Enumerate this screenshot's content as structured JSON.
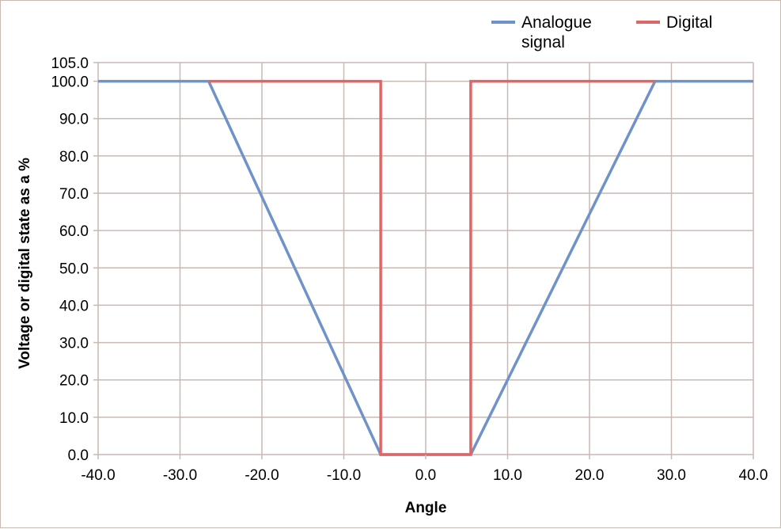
{
  "chart_data": {
    "type": "line",
    "xlabel": "Angle",
    "ylabel": "Voltage or digital state as a %",
    "xlim": [
      -40,
      40
    ],
    "ylim": [
      0,
      105
    ],
    "x_ticks": [
      -40,
      -30,
      -20,
      -10,
      0,
      10,
      20,
      30,
      40
    ],
    "x_tick_labels": [
      "-40.0",
      "-30.0",
      "-20.0",
      "-10.0",
      "0.0",
      "10.0",
      "20.0",
      "30.0",
      "40.0"
    ],
    "y_ticks": [
      0,
      10,
      20,
      30,
      40,
      50,
      60,
      70,
      80,
      90,
      100,
      105
    ],
    "y_tick_labels": [
      "0.0",
      "10.0",
      "20.0",
      "30.0",
      "40.0",
      "50.0",
      "60.0",
      "70.0",
      "80.0",
      "90.0",
      "100.0",
      "105.0"
    ],
    "grid": true,
    "legend_position": "top-right",
    "series": [
      {
        "name": "Analogue signal",
        "name_lines": [
          "Analogue",
          "signal"
        ],
        "color": "#6f93c9",
        "x": [
          -40,
          -26.5,
          -5.5,
          5.5,
          28,
          40
        ],
        "y": [
          100,
          100,
          0,
          0,
          100,
          100
        ]
      },
      {
        "name": "Digital",
        "name_lines": [
          "Digital"
        ],
        "color": "#e06666",
        "x": [
          -26.5,
          -5.5,
          -5.5,
          5.5,
          5.5,
          28
        ],
        "y": [
          100,
          100,
          0,
          0,
          100,
          100
        ]
      }
    ]
  }
}
